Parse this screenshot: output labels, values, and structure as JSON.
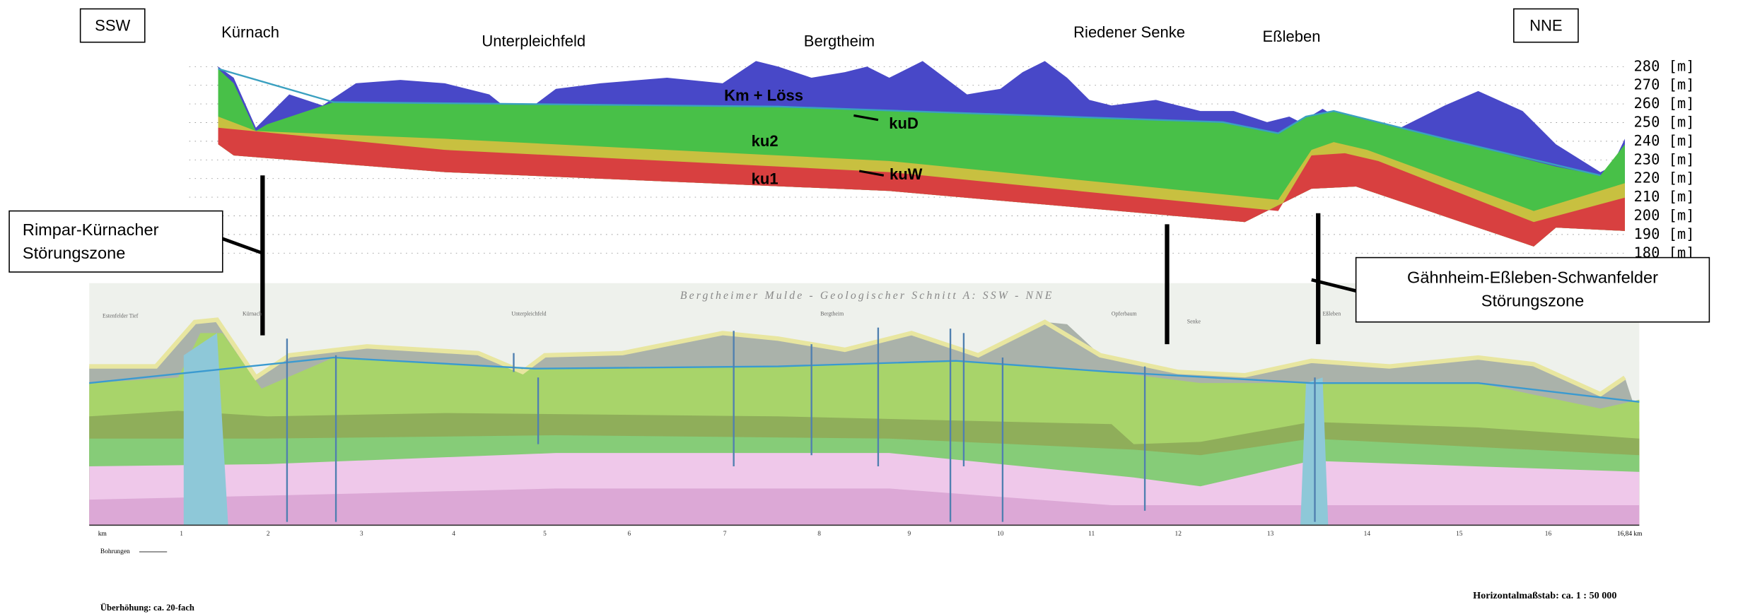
{
  "header": {
    "left": "SSW",
    "right": "NNE"
  },
  "places": [
    "Kürnach",
    "Unterpleichfeld",
    "Bergtheim",
    "Riedener Senke",
    "Eßleben"
  ],
  "layers": {
    "km": "Km + Löss",
    "ku2": "ku2",
    "ku1": "ku1",
    "kud": "kuD",
    "kuw": "kuW"
  },
  "scale": [
    "280 [m]",
    "270 [m]",
    "260 [m]",
    "250 [m]",
    "240 [m]",
    "230 [m]",
    "220 [m]",
    "210 [m]",
    "200 [m]",
    "190 [m]",
    "180 [m]"
  ],
  "faults": {
    "left": [
      "Rimpar-Kürnacher",
      "Störungszone"
    ],
    "right": [
      "Gähnheim-Eßleben-Schwanfelder",
      "Störungszone"
    ]
  },
  "section": {
    "title": "Bergtheimer Mulde - Geologischer Schnitt A:  SSW - NNE",
    "places": [
      "Estenfelder Tief",
      "Kürnach",
      "Unterpleichfeld",
      "Bergtheim",
      "Opferbaum",
      "Senke",
      "Eßleben"
    ],
    "km_label": "km",
    "distances": [
      "1",
      "2",
      "3",
      "4",
      "5",
      "6",
      "7",
      "8",
      "9",
      "10",
      "11",
      "12",
      "13",
      "14",
      "15",
      "16"
    ],
    "end_km": "16,84 km",
    "drillings": "Bohrungen",
    "exaggeration": "Überhöhung: ca. 20-fach",
    "scale": "Horizontalmaßstab: ca. 1 : 50 000"
  }
}
